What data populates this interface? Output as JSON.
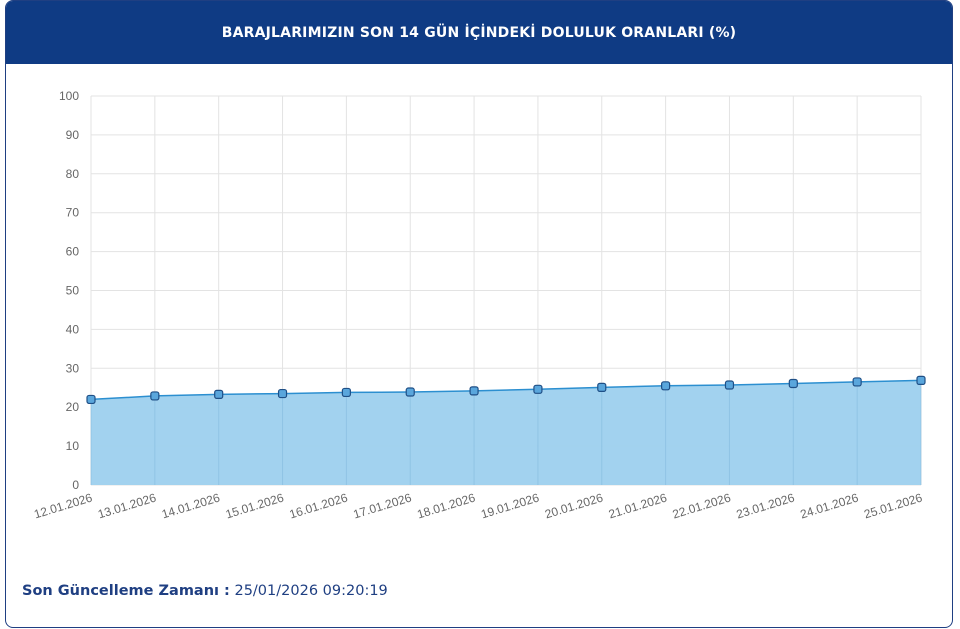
{
  "header": {
    "title": "BARAJLARIMIZIN SON 14 GÜN İÇİNDEKİ DOLULUK ORANLARI (%)"
  },
  "footer": {
    "label": "Son Güncelleme Zamanı :",
    "value": "25/01/2026 09:20:19"
  },
  "chart_data": {
    "type": "area",
    "title": "",
    "xlabel": "",
    "ylabel": "",
    "ylim": [
      0,
      100
    ],
    "yticks": [
      0,
      10,
      20,
      30,
      40,
      50,
      60,
      70,
      80,
      90,
      100
    ],
    "grid": true,
    "fill_color": "#9dd0ee",
    "line_color": "#2c8fd0",
    "marker_color": "#5aa6dc",
    "categories": [
      "12.01.2026",
      "13.01.2026",
      "14.01.2026",
      "15.01.2026",
      "16.01.2026",
      "17.01.2026",
      "18.01.2026",
      "19.01.2026",
      "20.01.2026",
      "21.01.2026",
      "22.01.2026",
      "23.01.2026",
      "24.01.2026",
      "25.01.2026"
    ],
    "values": [
      22.0,
      22.9,
      23.3,
      23.5,
      23.8,
      23.9,
      24.2,
      24.6,
      25.1,
      25.5,
      25.7,
      26.1,
      26.5,
      26.9
    ]
  }
}
